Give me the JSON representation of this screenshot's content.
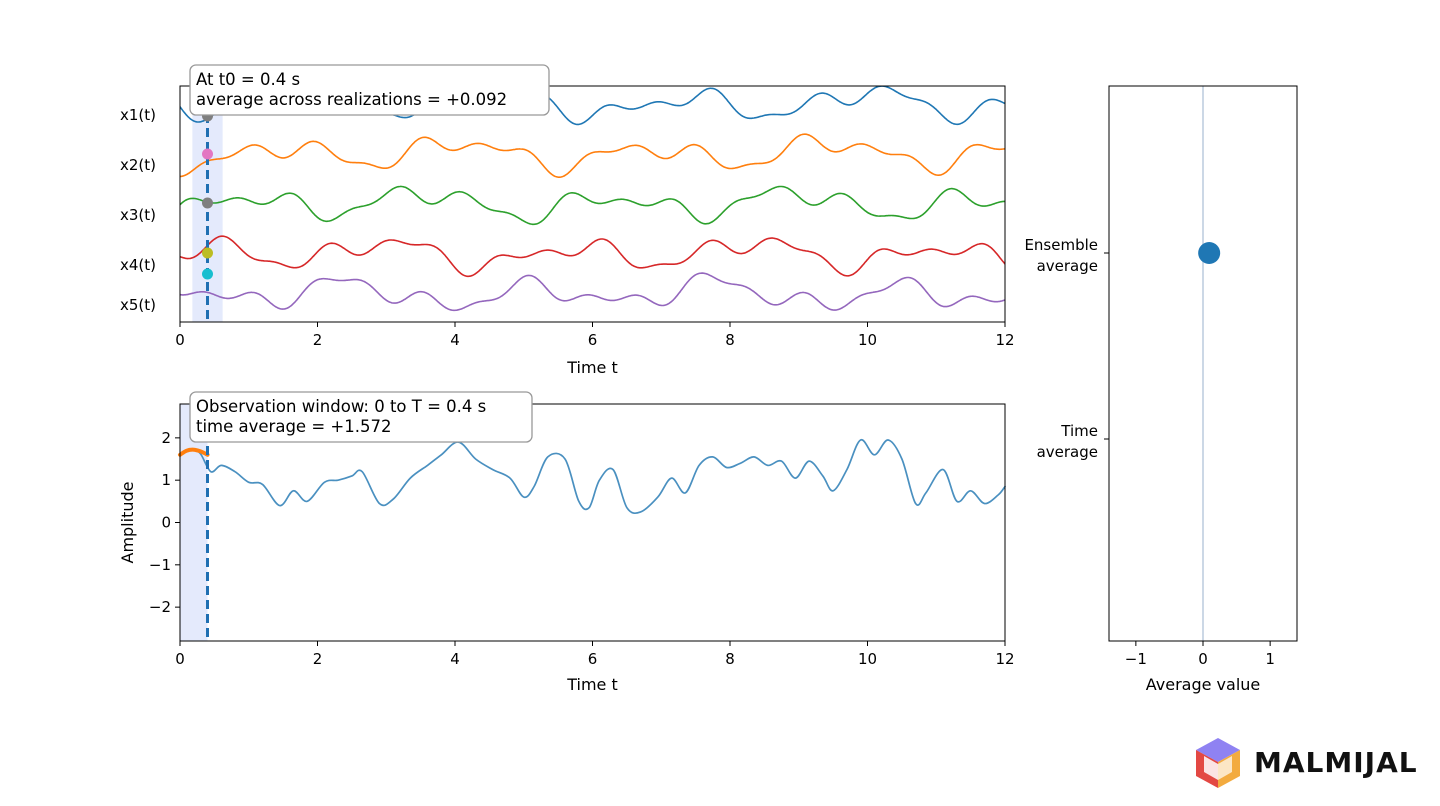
{
  "chart_data": [
    {
      "type": "line",
      "panel": "ensemble",
      "xlabel": "Time t",
      "ylabel": "",
      "xlim": [
        0,
        12
      ],
      "x_ticks": [
        0,
        2,
        4,
        6,
        8,
        10,
        12
      ],
      "x_tick_labels": [
        "0",
        "2",
        "4",
        "6",
        "8",
        "10",
        "12"
      ],
      "series_labels": [
        "x1(t)",
        "x2(t)",
        "x3(t)",
        "x4(t)",
        "x5(t)"
      ],
      "series_colors": [
        "#1f77b4",
        "#ff7f0e",
        "#2ca02c",
        "#d62728",
        "#9467bd"
      ],
      "marker_colors": [
        "#7f7f7f",
        "#e377c2",
        "#7f7f7f",
        "#bcbd22",
        "#17becf"
      ],
      "t0": 0.4,
      "highlight_band": [
        0.18,
        0.62
      ],
      "annotation_line1": "At t0 =  0.4 s",
      "annotation_line2": "average across realizations = +0.092"
    },
    {
      "type": "line",
      "panel": "time",
      "xlabel": "Time t",
      "ylabel": "Amplitude",
      "xlim": [
        0,
        12
      ],
      "ylim": [
        -2.8,
        2.8
      ],
      "x_ticks": [
        0,
        2,
        4,
        6,
        8,
        10,
        12
      ],
      "x_tick_labels": [
        "0",
        "2",
        "4",
        "6",
        "8",
        "10",
        "12"
      ],
      "y_ticks": [
        2,
        1,
        0,
        -1,
        -2
      ],
      "y_tick_labels": [
        "2",
        "1",
        "0",
        "−1",
        "−2"
      ],
      "T": 0.4,
      "window": [
        0,
        0.4
      ],
      "series": [
        {
          "color": "#4a90c0",
          "x": [
            0,
            0.1,
            0.2,
            0.3,
            0.45,
            0.6,
            0.8,
            1.0,
            1.2,
            1.45,
            1.65,
            1.85,
            2.1,
            2.3,
            2.5,
            2.65,
            2.9,
            3.1,
            3.35,
            3.6,
            3.8,
            4.05,
            4.3,
            4.55,
            4.8,
            5.0,
            5.15,
            5.35,
            5.6,
            5.8,
            5.95,
            6.1,
            6.3,
            6.5,
            6.7,
            6.95,
            7.15,
            7.35,
            7.55,
            7.75,
            7.95,
            8.15,
            8.35,
            8.55,
            8.75,
            8.95,
            9.15,
            9.35,
            9.5,
            9.7,
            9.9,
            10.1,
            10.3,
            10.5,
            10.7,
            10.85,
            11.1,
            11.3,
            11.5,
            11.7,
            11.9,
            12.0
          ],
          "y": [
            1.6,
            1.7,
            1.72,
            1.62,
            1.2,
            1.35,
            1.2,
            0.95,
            0.9,
            0.4,
            0.75,
            0.5,
            0.95,
            1.0,
            1.1,
            1.2,
            0.45,
            0.55,
            1.05,
            1.35,
            1.6,
            1.9,
            1.5,
            1.25,
            1.05,
            0.6,
            0.85,
            1.55,
            1.5,
            0.5,
            0.35,
            1.0,
            1.25,
            0.35,
            0.25,
            0.6,
            1.05,
            0.7,
            1.35,
            1.55,
            1.3,
            1.4,
            1.55,
            1.35,
            1.45,
            1.05,
            1.45,
            1.1,
            0.75,
            1.25,
            1.95,
            1.6,
            1.95,
            1.5,
            0.45,
            0.7,
            1.25,
            0.5,
            0.75,
            0.45,
            0.65,
            0.85
          ]
        },
        {
          "color": "#ff7f0e",
          "x": [
            0,
            0.1,
            0.2,
            0.3,
            0.4
          ],
          "y": [
            1.6,
            1.7,
            1.72,
            1.68,
            1.6
          ]
        }
      ],
      "annotation_line1": "Observation window: 0 to T =  0.4 s",
      "annotation_line2": "time average = +1.572"
    },
    {
      "type": "scatter",
      "panel": "averages",
      "xlabel": "Average value",
      "xlim": [
        -1.4,
        1.4
      ],
      "x_ticks": [
        -1,
        0,
        1
      ],
      "x_tick_labels": [
        "−1",
        "0",
        "1"
      ],
      "categories": [
        "Ensemble\naverage",
        "Time\naverage"
      ],
      "category_lines": [
        [
          "Ensemble",
          "average"
        ],
        [
          "Time",
          "average"
        ]
      ],
      "points": [
        {
          "category": "Ensemble average",
          "value": 0.092,
          "color": "#1f77b4"
        }
      ]
    }
  ],
  "logo": {
    "text": "MALMIJAL"
  }
}
